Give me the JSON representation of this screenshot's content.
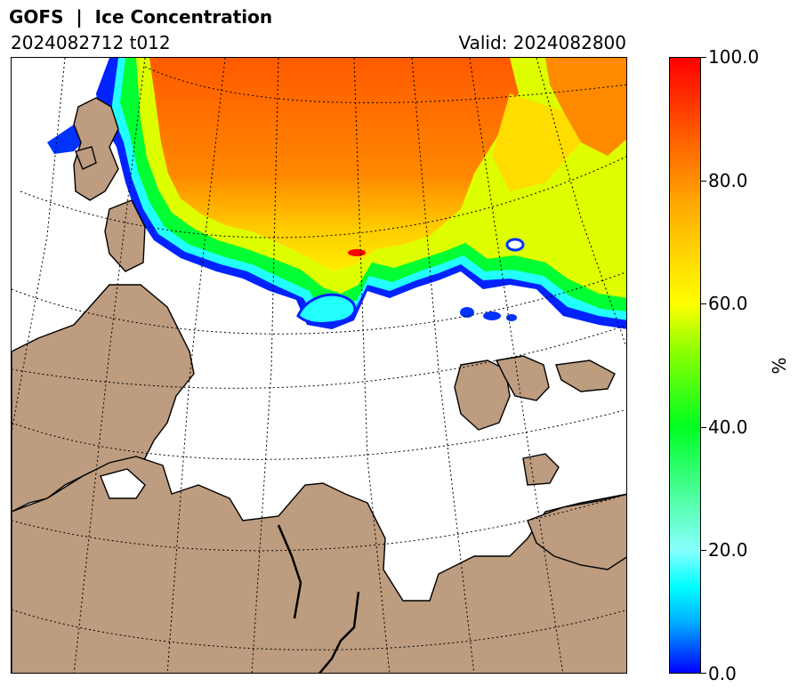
{
  "header": {
    "title": "GOFS  |  Ice Concentration",
    "run_label": "2024082712 t012",
    "valid_label": "Valid: 2024082800"
  },
  "colorbar": {
    "unit": "%",
    "range": [
      0,
      100
    ],
    "ticks": [
      "0.0",
      "20.0",
      "40.0",
      "60.0",
      "80.0",
      "100.0"
    ]
  },
  "map": {
    "land_color": "#bd9c7f",
    "ocean_color": "#ffffff",
    "graticule": "dotted",
    "ice_colors": {
      "high": "#ff5500",
      "mid": "#ffff00",
      "low": "#00ff44",
      "edge": "#0000ff"
    }
  }
}
